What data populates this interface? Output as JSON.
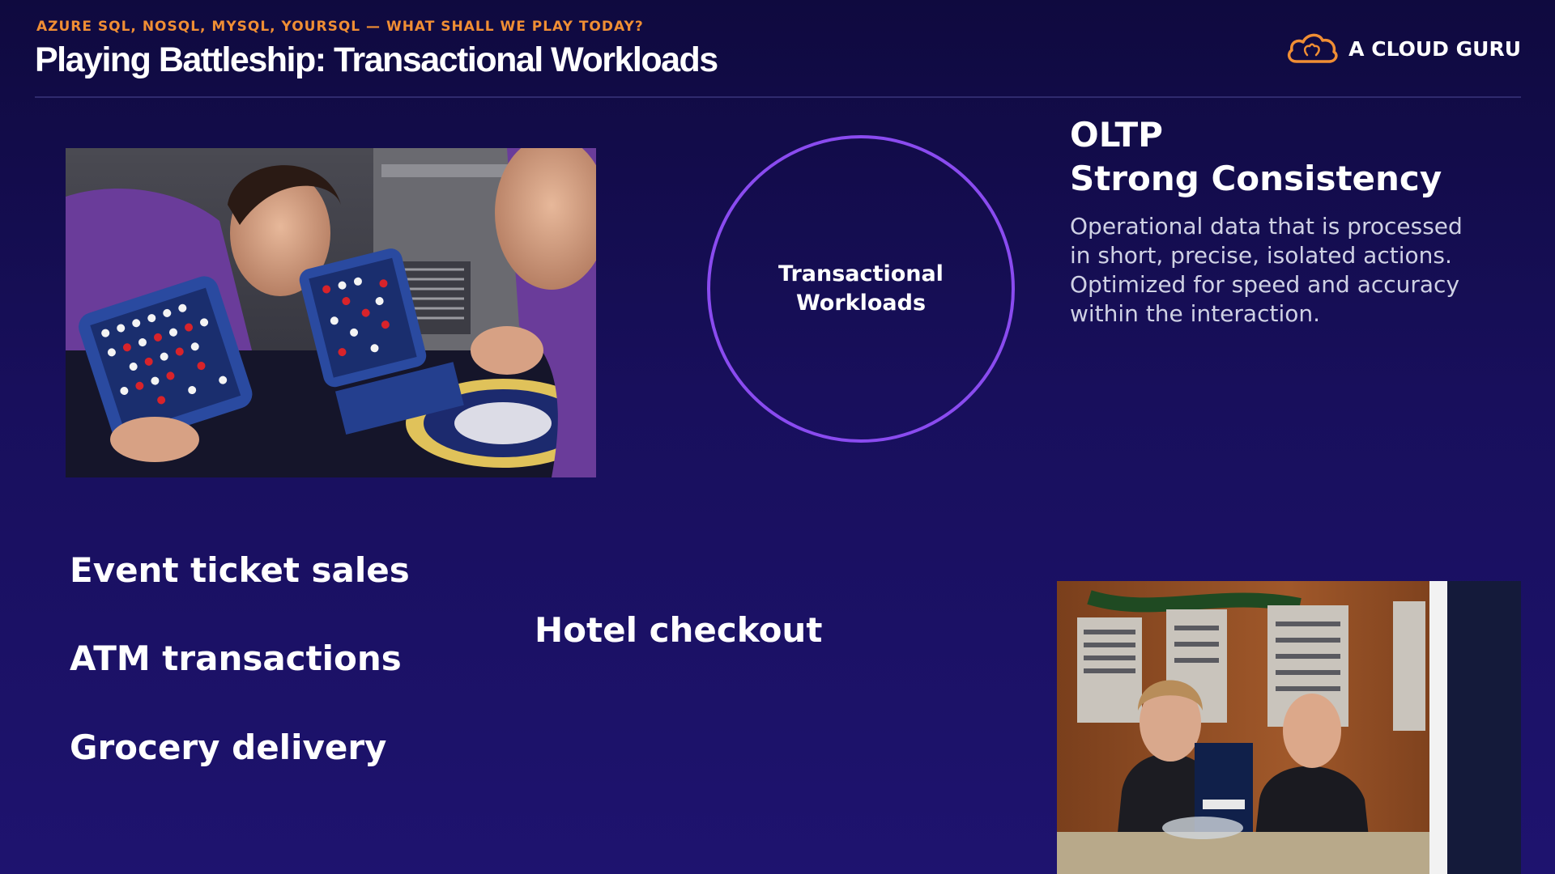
{
  "header": {
    "kicker": "AZURE SQL, NOSQL, MYSQL, YOURSQL — WHAT SHALL WE PLAY TODAY?",
    "title": "Playing Battleship: Transactional Workloads"
  },
  "brand": {
    "name": "A CLOUD GURU",
    "icon": "cloud-logo-icon",
    "color": "#f08e34"
  },
  "circle": {
    "label": "Transactional\nWorkloads",
    "color": "#8a4bf0"
  },
  "oltp": {
    "heading_line1": "OLTP",
    "heading_line2": "Strong Consistency",
    "description_lines": [
      "Operational data that is processed",
      "in short, precise, isolated actions.",
      "Optimized for speed and accuracy",
      "within the interaction."
    ]
  },
  "examples": [
    "Event ticket sales",
    "ATM transactions",
    "Grocery delivery",
    "Hotel checkout"
  ],
  "images": {
    "battleship": "battleship-game-photo",
    "hotel": "hotel-reception-photo"
  },
  "colors": {
    "background": "#180f5c",
    "accent": "#f08e34",
    "circle": "#8a4bf0"
  }
}
